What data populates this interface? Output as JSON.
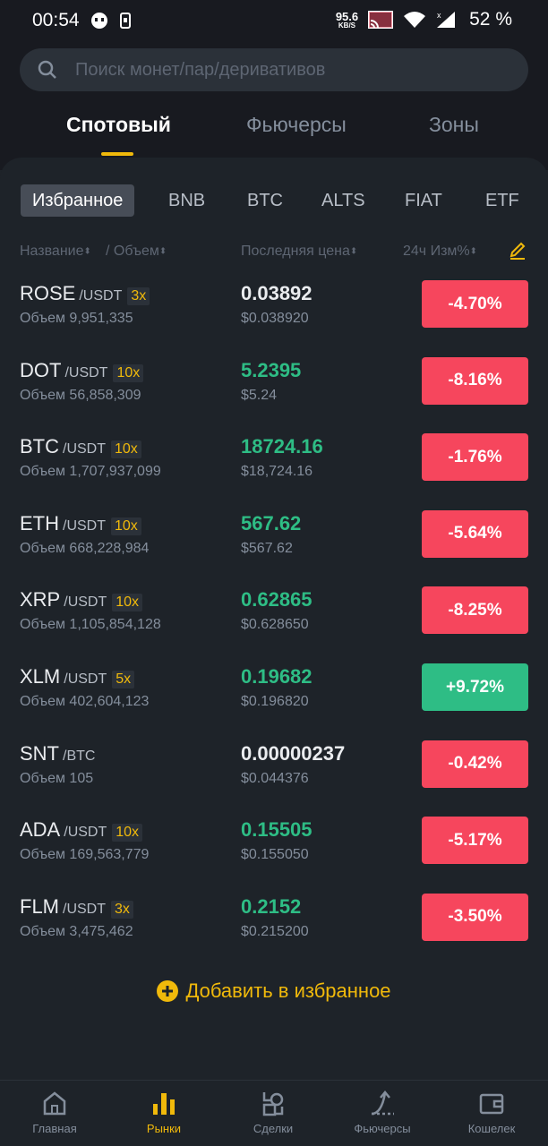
{
  "status_bar": {
    "time": "00:54",
    "net_speed": "95.6",
    "net_unit": "KB/S",
    "battery": "52 %"
  },
  "search": {
    "placeholder": "Поиск монет/пар/деривативов"
  },
  "main_tabs": [
    "Спотовый",
    "Фьючерсы",
    "Зоны"
  ],
  "sub_tabs": [
    "Избранное",
    "BNB",
    "BTC",
    "ALTS",
    "FIAT",
    "ETF"
  ],
  "columns": {
    "name": "Название",
    "volume": "Объем",
    "last_price": "Последняя цена",
    "change": "24ч Изм%"
  },
  "rows": [
    {
      "base": "ROSE",
      "quote": "/USDT",
      "leverage": "3x",
      "volume": "Объем 9,951,335",
      "price": "0.03892",
      "fiat": "$0.038920",
      "change": "-4.70%"
    },
    {
      "base": "DOT",
      "quote": "/USDT",
      "leverage": "10x",
      "volume": "Объем 56,858,309",
      "price": "5.2395",
      "fiat": "$5.24",
      "change": "-8.16%"
    },
    {
      "base": "BTC",
      "quote": "/USDT",
      "leverage": "10x",
      "volume": "Объем 1,707,937,099",
      "price": "18724.16",
      "fiat": "$18,724.16",
      "change": "-1.76%"
    },
    {
      "base": "ETH",
      "quote": "/USDT",
      "leverage": "10x",
      "volume": "Объем 668,228,984",
      "price": "567.62",
      "fiat": "$567.62",
      "change": "-5.64%"
    },
    {
      "base": "XRP",
      "quote": "/USDT",
      "leverage": "10x",
      "volume": "Объем 1,105,854,128",
      "price": "0.62865",
      "fiat": "$0.628650",
      "change": "-8.25%"
    },
    {
      "base": "XLM",
      "quote": "/USDT",
      "leverage": "5x",
      "volume": "Объем 402,604,123",
      "price": "0.19682",
      "fiat": "$0.196820",
      "change": "+9.72%"
    },
    {
      "base": "SNT",
      "quote": "/BTC",
      "leverage": "",
      "volume": "Объем 105",
      "price": "0.00000237",
      "fiat": "$0.044376",
      "change": "-0.42%"
    },
    {
      "base": "ADA",
      "quote": "/USDT",
      "leverage": "10x",
      "volume": "Объем 169,563,779",
      "price": "0.15505",
      "fiat": "$0.155050",
      "change": "-5.17%"
    },
    {
      "base": "FLM",
      "quote": "/USDT",
      "leverage": "3x",
      "volume": "Объем 3,475,462",
      "price": "0.2152",
      "fiat": "$0.215200",
      "change": "-3.50%"
    }
  ],
  "add_favorite": "Добавить в избранное",
  "nav": [
    "Главная",
    "Рынки",
    "Сделки",
    "Фьючерсы",
    "Кошелек"
  ],
  "colors": {
    "accent": "#f0b90b",
    "up": "#2ebd85",
    "down": "#f6465d"
  }
}
